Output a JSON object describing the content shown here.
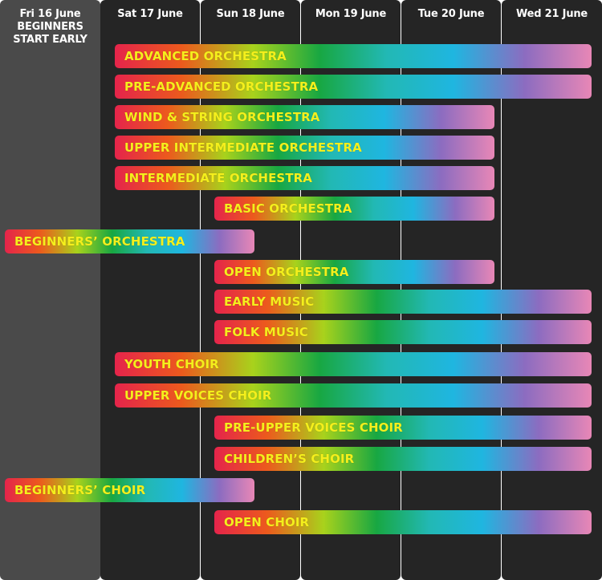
{
  "chart_data": {
    "type": "gantt",
    "days": [
      "Fri 16 June\nBEGINNERS\nSTART EARLY",
      "Sat 17 June",
      "Sun 18 June",
      "Mon 19 June",
      "Tue 20 June",
      "Wed 21 June"
    ],
    "gradient_colors": [
      "#e5244b",
      "#ec5a1d",
      "#a8d21c",
      "#18a742",
      "#22b8b4",
      "#1fb6e0",
      "#8c6cc0",
      "#e887b6"
    ],
    "courses": [
      {
        "name": "ADVANCED ORCHESTRA",
        "start_day": 1.1,
        "end_day": 6.0
      },
      {
        "name": "PRE-ADVANCED ORCHESTRA",
        "start_day": 1.1,
        "end_day": 6.0
      },
      {
        "name": "WIND & STRING ORCHESTRA",
        "start_day": 1.1,
        "end_day": 4.9
      },
      {
        "name": "UPPER INTERMEDIATE ORCHESTRA",
        "start_day": 1.1,
        "end_day": 4.9
      },
      {
        "name": "INTERMEDIATE ORCHESTRA",
        "start_day": 1.1,
        "end_day": 4.9
      },
      {
        "name": "BASIC ORCHESTRA",
        "start_day": 2.1,
        "end_day": 4.9
      },
      {
        "name": "BEGINNERS’ ORCHESTRA",
        "start_day": 0.0,
        "end_day": 2.5
      },
      {
        "name": "OPEN ORCHESTRA",
        "start_day": 2.1,
        "end_day": 4.9
      },
      {
        "name": "EARLY MUSIC",
        "start_day": 2.1,
        "end_day": 6.0
      },
      {
        "name": "FOLK MUSIC",
        "start_day": 2.1,
        "end_day": 6.0
      },
      {
        "name": "YOUTH CHOIR",
        "start_day": 1.1,
        "end_day": 6.0
      },
      {
        "name": "UPPER VOICES CHOIR",
        "start_day": 1.1,
        "end_day": 6.0
      },
      {
        "name": "PRE-UPPER VOICES CHOIR",
        "start_day": 2.1,
        "end_day": 6.0
      },
      {
        "name": "CHILDREN’S CHOIR",
        "start_day": 2.1,
        "end_day": 6.0
      },
      {
        "name": "BEGINNERS’ CHOIR",
        "start_day": 0.0,
        "end_day": 2.5
      },
      {
        "name": "OPEN CHOIR",
        "start_day": 2.1,
        "end_day": 6.0
      }
    ]
  }
}
